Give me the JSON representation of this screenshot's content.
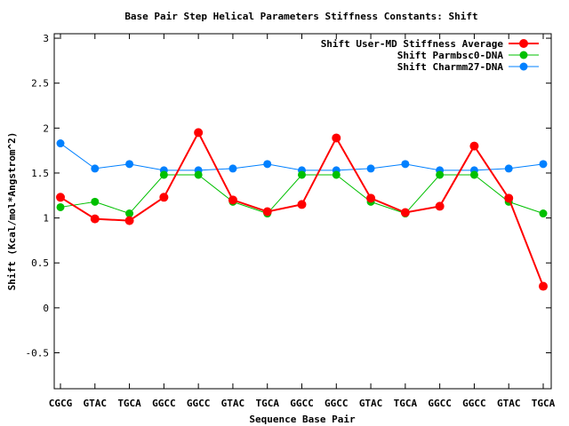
{
  "chart_data": {
    "type": "line",
    "title": "Base Pair Step Helical Parameters Stiffness Constants: Shift",
    "xlabel": "Sequence Base Pair",
    "ylabel": "Shift (Kcal/mol*Angstrom^2)",
    "ylim": [
      -0.9,
      3.05
    ],
    "yticks": [
      -0.5,
      0,
      0.5,
      1,
      1.5,
      2,
      2.5,
      3
    ],
    "ytick_labels": [
      "-0.5",
      "0",
      "0.5",
      "1",
      "1.5",
      "2",
      "2.5",
      "3"
    ],
    "categories": [
      "CGCG",
      "GTAC",
      "TGCA",
      "GGCC",
      "GGCC",
      "GTAC",
      "TGCA",
      "GGCC",
      "GGCC",
      "GTAC",
      "TGCA",
      "GGCC",
      "GGCC",
      "GTAC",
      "TGCA"
    ],
    "legend_position": "top-right",
    "grid": false,
    "series": [
      {
        "name": "Shift User-MD Stiffness Average",
        "color": "#ff0000",
        "values": [
          1.23,
          0.99,
          0.97,
          1.23,
          1.95,
          1.2,
          1.07,
          1.15,
          1.89,
          1.22,
          1.06,
          1.13,
          1.8,
          1.22,
          0.24
        ]
      },
      {
        "name": "Shift Parmbsc0-DNA",
        "color": "#00c000",
        "values": [
          1.12,
          1.18,
          1.05,
          1.48,
          1.48,
          1.18,
          1.05,
          1.48,
          1.48,
          1.18,
          1.05,
          1.48,
          1.48,
          1.18,
          1.05
        ]
      },
      {
        "name": "Shift Charmm27-DNA",
        "color": "#0080ff",
        "values": [
          1.83,
          1.55,
          1.6,
          1.53,
          1.53,
          1.55,
          1.6,
          1.53,
          1.53,
          1.55,
          1.6,
          1.53,
          1.53,
          1.55,
          1.6
        ]
      }
    ]
  }
}
